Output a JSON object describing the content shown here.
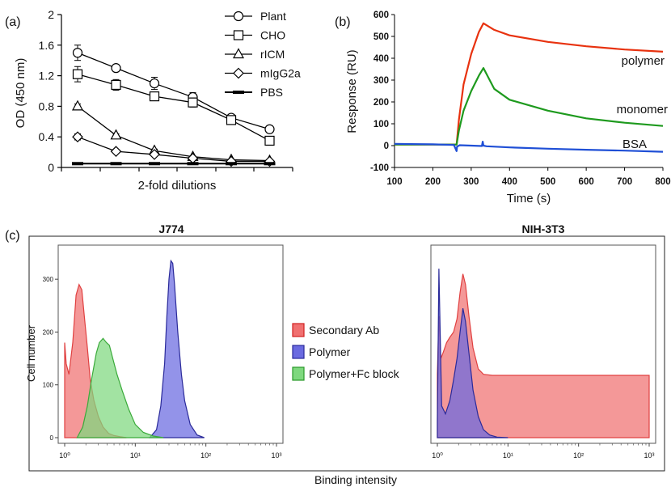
{
  "panel_labels": {
    "a": "(a)",
    "b": "(b)",
    "c": "(c)"
  },
  "chart_data": [
    {
      "id": "a",
      "type": "line",
      "ylabel": "OD (450 nm)",
      "xlabel": "2-fold dilutions",
      "ylim": [
        0,
        2
      ],
      "y_ticks": [
        "0",
        "0.4",
        "0.8",
        "1.2",
        "1.6",
        "2"
      ],
      "x": [
        1,
        2,
        3,
        4,
        5,
        6
      ],
      "legend_position": "top-right",
      "series": [
        {
          "name": "Plant",
          "marker": "circle",
          "values": [
            1.5,
            1.3,
            1.1,
            0.92,
            0.65,
            0.5
          ],
          "errors": [
            0.1,
            0.04,
            0.08,
            0.06,
            0.03,
            0.03
          ]
        },
        {
          "name": "CHO",
          "marker": "square",
          "values": [
            1.22,
            1.08,
            0.93,
            0.85,
            0.62,
            0.35
          ],
          "errors": [
            0.1,
            0.07,
            0.05,
            0.06,
            0.03,
            0.05
          ]
        },
        {
          "name": "rICM",
          "marker": "triangle",
          "values": [
            0.8,
            0.42,
            0.22,
            0.14,
            0.1,
            0.09
          ],
          "errors": [
            0.03,
            0.02,
            0.02,
            0.01,
            0.01,
            0.01
          ]
        },
        {
          "name": "mIgG2a",
          "marker": "diamond",
          "values": [
            0.4,
            0.21,
            0.17,
            0.12,
            0.08,
            0.08
          ],
          "errors": [
            0.04,
            0.02,
            0.02,
            0.01,
            0.01,
            0.01
          ]
        },
        {
          "name": "PBS",
          "marker": "dash",
          "values": [
            0.05,
            0.05,
            0.05,
            0.05,
            0.05,
            0.05
          ],
          "errors": [
            0,
            0,
            0,
            0,
            0,
            0
          ]
        }
      ]
    },
    {
      "id": "b",
      "type": "line",
      "ylabel": "Response (RU)",
      "xlabel": "Time (s)",
      "xlim": [
        100,
        800
      ],
      "ylim": [
        -100,
        600
      ],
      "x_ticks": [
        "100",
        "200",
        "300",
        "400",
        "500",
        "600",
        "700",
        "800"
      ],
      "y_ticks": [
        "-100",
        "0",
        "100",
        "200",
        "300",
        "400",
        "500",
        "600"
      ],
      "series": [
        {
          "name": "polymer",
          "color": "#e8320f",
          "x": [
            100,
            262,
            268,
            280,
            300,
            320,
            332,
            360,
            400,
            500,
            600,
            700,
            800
          ],
          "y": [
            5,
            5,
            120,
            280,
            420,
            520,
            560,
            530,
            505,
            475,
            455,
            440,
            430
          ]
        },
        {
          "name": "monomer",
          "color": "#1e9a1e",
          "x": [
            100,
            262,
            268,
            280,
            300,
            320,
            332,
            360,
            400,
            500,
            600,
            700,
            800
          ],
          "y": [
            5,
            5,
            70,
            160,
            250,
            320,
            355,
            260,
            210,
            160,
            125,
            105,
            90
          ]
        },
        {
          "name": "BSA",
          "color": "#1f4fd6",
          "x": [
            100,
            200,
            255,
            262,
            263,
            270,
            300,
            328,
            330,
            332,
            340,
            400,
            500,
            600,
            700,
            800
          ],
          "y": [
            8,
            6,
            3,
            -25,
            -5,
            2,
            0,
            -2,
            18,
            0,
            -3,
            -8,
            -14,
            -19,
            -23,
            -28
          ]
        }
      ]
    },
    {
      "id": "c",
      "type": "area",
      "ylabel": "Cell number",
      "xlabel": "Binding intensity",
      "x_scale": "log",
      "xlim": [
        1,
        1000
      ],
      "x_ticks": [
        "10⁰",
        "10¹",
        "10²",
        "10³"
      ],
      "panels": [
        {
          "title": "J774",
          "y_ticks": [
            "0",
            "100",
            "200",
            "300"
          ],
          "ylim": [
            0,
            360
          ],
          "series": [
            {
              "name": "Secondary Ab",
              "color": "#f07070",
              "x": [
                1,
                1.05,
                1.15,
                1.3,
                1.45,
                1.6,
                1.75,
                1.9,
                2.1,
                2.3,
                2.6,
                3.0,
                3.5,
                4.2,
                5,
                6,
                7.5
              ],
              "y": [
                180,
                140,
                120,
                180,
                270,
                290,
                280,
                230,
                170,
                110,
                70,
                40,
                20,
                8,
                4,
                2,
                0
              ]
            },
            {
              "name": "Polymer",
              "color": "#6a6ae0",
              "x": [
                16,
                20,
                23,
                26,
                28,
                30,
                32,
                34,
                36,
                40,
                45,
                50,
                60,
                75,
                95
              ],
              "y": [
                0,
                15,
                60,
                140,
                230,
                300,
                335,
                330,
                290,
                200,
                120,
                70,
                25,
                5,
                0
              ]
            },
            {
              "name": "Polymer+Fc block",
              "color": "#7ed87e",
              "x": [
                1.5,
                1.8,
                2.1,
                2.4,
                2.8,
                3.1,
                3.5,
                3.9,
                4.3,
                4.8,
                5.5,
                6.5,
                8,
                10,
                13,
                18,
                25
              ],
              "y": [
                0,
                20,
                60,
                110,
                160,
                180,
                188,
                180,
                175,
                150,
                120,
                90,
                55,
                25,
                10,
                3,
                0
              ]
            }
          ]
        },
        {
          "title": "NIH-3T3",
          "y_ticks": [],
          "ylim": [
            0,
            360
          ],
          "series": [
            {
              "name": "Secondary Ab",
              "color": "#f07070",
              "x": [
                1,
                1.05,
                1.12,
                1.2,
                1.35,
                1.5,
                1.7,
                1.9,
                2.1,
                2.3,
                2.5,
                2.8,
                3.2,
                3.8,
                4.5,
                6,
                1000
              ],
              "y": [
                120,
                230,
                150,
                160,
                180,
                190,
                200,
                225,
                275,
                310,
                290,
                230,
                170,
                130,
                120,
                118,
                118
              ]
            },
            {
              "name": "Polymer",
              "color": "#6a6ae0",
              "x": [
                1,
                1.05,
                1.15,
                1.3,
                1.5,
                1.7,
                1.9,
                2.1,
                2.3,
                2.5,
                2.8,
                3.2,
                3.8,
                4.5,
                5.5,
                7,
                10
              ],
              "y": [
                30,
                320,
                60,
                45,
                70,
                110,
                150,
                200,
                245,
                220,
                160,
                90,
                40,
                15,
                5,
                1,
                0
              ]
            }
          ]
        }
      ],
      "legend_position": "center",
      "legend": [
        "Secondary Ab",
        "Polymer",
        "Polymer+Fc block"
      ]
    }
  ]
}
